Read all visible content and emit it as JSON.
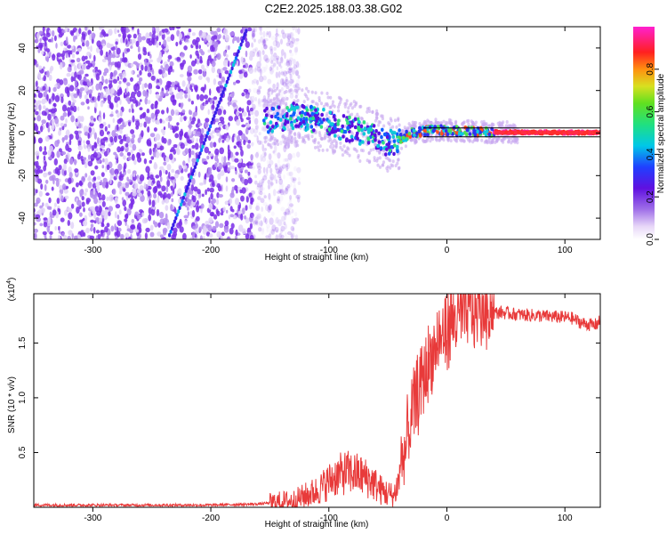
{
  "title": "C2E2.2025.188.03.38.G02",
  "chart_data": [
    {
      "type": "heatmap",
      "xlabel": "Height of straight line (km)",
      "ylabel": "Frequency (Hz)",
      "xlim": [
        -350,
        130
      ],
      "ylim": [
        -50,
        50
      ],
      "xticks": [
        -300,
        -200,
        -100,
        0,
        100
      ],
      "yticks": [
        -40,
        -20,
        0,
        20,
        40
      ],
      "colorbar": {
        "label": "Normalized spectral amplitude",
        "range": [
          0,
          1
        ],
        "ticks": [
          0.0,
          0.2,
          0.4,
          0.6,
          0.8
        ],
        "tick_labels": [
          "0.0",
          "0.2",
          "0.4",
          "0.6",
          "0.8"
        ],
        "colormap": "rainbow-white-purple-blue-cyan-green-yellow-red-magenta"
      },
      "features": {
        "noise_region_x": [
          -350,
          -145
        ],
        "chirp_line": [
          [
            -235,
            -48
          ],
          [
            -170,
            48
          ]
        ],
        "signal_track": [
          [
            -155,
            6
          ],
          [
            -130,
            8
          ],
          [
            -110,
            6
          ],
          [
            -90,
            3
          ],
          [
            -70,
            0
          ],
          [
            -50,
            -5
          ],
          [
            -40,
            -3
          ],
          [
            -30,
            0
          ],
          [
            -10,
            1.5
          ],
          [
            10,
            1
          ],
          [
            30,
            0.5
          ],
          [
            60,
            0.3
          ],
          [
            130,
            0.2
          ]
        ]
      }
    },
    {
      "type": "line",
      "xlabel": "Height of straight line (km)",
      "ylabel": "SNR (10 * v/v)",
      "y_multiplier_label": "(x10",
      "y_multiplier_exponent": "4",
      "xlim": [
        -350,
        130
      ],
      "ylim": [
        0,
        1.95
      ],
      "xticks": [
        -300,
        -200,
        -100,
        0,
        100
      ],
      "yticks": [
        0.5,
        1.0,
        1.5
      ],
      "ytick_labels": [
        "0.5",
        "1.0",
        "1.5"
      ],
      "series_color": "#e83a3a",
      "x": [
        -350,
        -300,
        -250,
        -200,
        -160,
        -130,
        -110,
        -95,
        -85,
        -75,
        -65,
        -55,
        -45,
        -35,
        -28,
        -22,
        -15,
        -8,
        0,
        10,
        20,
        30,
        45,
        60,
        75,
        90,
        105,
        115,
        125,
        130
      ],
      "y": [
        0.02,
        0.02,
        0.02,
        0.02,
        0.03,
        0.06,
        0.15,
        0.28,
        0.32,
        0.3,
        0.25,
        0.15,
        0.1,
        0.45,
        0.85,
        1.05,
        1.25,
        1.4,
        1.55,
        1.68,
        1.72,
        1.76,
        1.78,
        1.76,
        1.75,
        1.74,
        1.73,
        1.68,
        1.66,
        1.7
      ]
    }
  ]
}
